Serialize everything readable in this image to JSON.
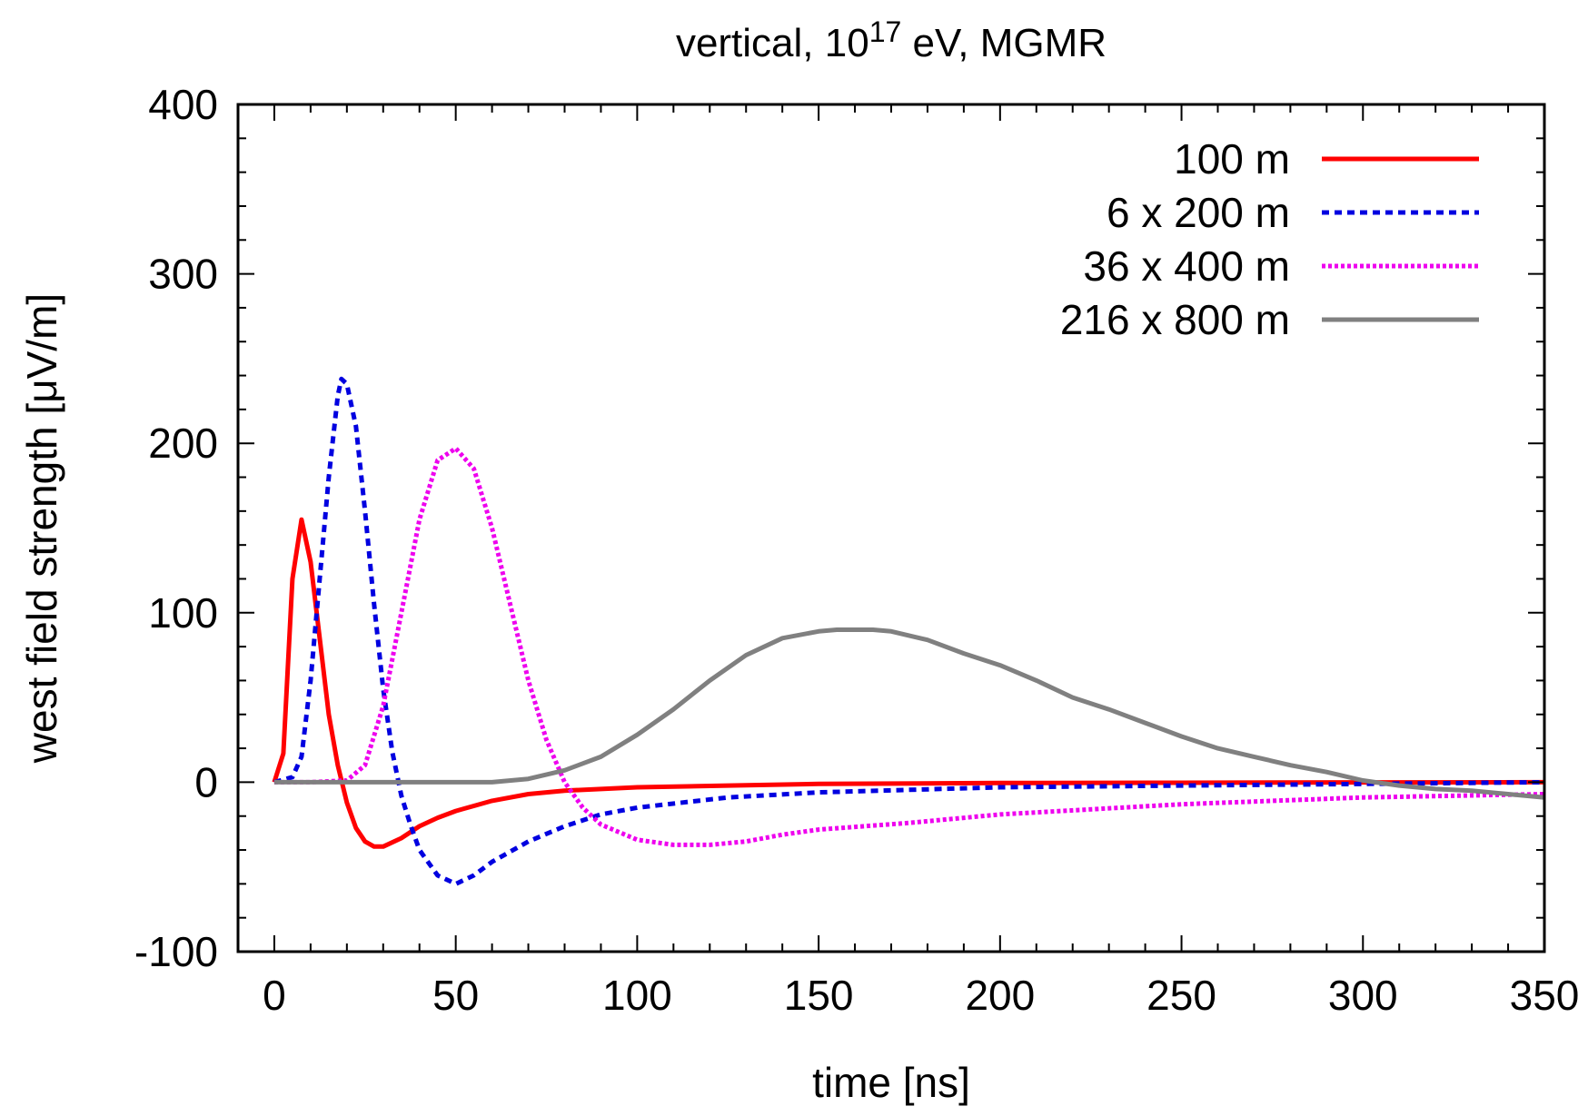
{
  "chart_data": {
    "type": "line",
    "title": {
      "prefix": "vertical, 10",
      "superscript": "17",
      "suffix": " eV, MGMR"
    },
    "xlabel": "time [ns]",
    "ylabel": "west field strength [μV/m]",
    "xlim": [
      -10,
      350
    ],
    "ylim": [
      -100,
      400
    ],
    "xticks": [
      0,
      50,
      100,
      150,
      200,
      250,
      300,
      350
    ],
    "yticks": [
      -100,
      0,
      100,
      200,
      300,
      400
    ],
    "xtick_labels": [
      "0",
      "50",
      "100",
      "150",
      "200",
      "250",
      "300",
      "350"
    ],
    "ytick_labels": [
      "-100",
      "0",
      "100",
      "200",
      "300",
      "400"
    ],
    "grid": false,
    "legend_position": "top-right",
    "series": [
      {
        "name": "100 m",
        "color": "#ff0000",
        "style": "solid",
        "x": [
          0,
          2.5,
          5,
          7.5,
          10,
          12.5,
          15,
          17.5,
          20,
          22.5,
          25,
          27.5,
          30,
          35,
          40,
          45,
          50,
          60,
          70,
          80,
          100,
          125,
          150,
          200,
          250,
          300,
          350
        ],
        "y": [
          0,
          17,
          120,
          155,
          130,
          85,
          40,
          10,
          -12,
          -27,
          -35,
          -38,
          -38,
          -33,
          -26,
          -21,
          -17,
          -11,
          -7,
          -5,
          -3,
          -2,
          -1,
          -0.5,
          -0.3,
          -0.1,
          0
        ]
      },
      {
        "name": "6 x 200 m",
        "color": "#0000e0",
        "style": "dashed",
        "x": [
          0,
          5,
          7.5,
          10,
          12.5,
          15,
          17.5,
          18.5,
          20,
          22.5,
          25,
          27.5,
          30,
          32.5,
          35,
          37.5,
          40,
          45,
          50,
          55,
          60,
          70,
          80,
          90,
          100,
          125,
          150,
          200,
          250,
          300,
          350
        ],
        "y": [
          0,
          3,
          15,
          60,
          120,
          180,
          228,
          238,
          235,
          210,
          160,
          105,
          55,
          18,
          -8,
          -25,
          -40,
          -55,
          -60,
          -55,
          -47,
          -35,
          -26,
          -19,
          -15,
          -9,
          -6,
          -3,
          -2,
          -1,
          0
        ]
      },
      {
        "name": "36 x 400 m",
        "color": "#ee00ee",
        "style": "dotted",
        "x": [
          0,
          10,
          20,
          25,
          30,
          35,
          40,
          45,
          50,
          55,
          60,
          65,
          70,
          75,
          80,
          85,
          90,
          100,
          110,
          120,
          130,
          140,
          150,
          175,
          200,
          250,
          300,
          350
        ],
        "y": [
          0,
          0,
          1,
          10,
          45,
          100,
          155,
          190,
          197,
          185,
          150,
          105,
          60,
          25,
          0,
          -15,
          -25,
          -34,
          -37,
          -37,
          -35,
          -31,
          -28,
          -24,
          -19,
          -13,
          -9,
          -7
        ]
      },
      {
        "name": "216 x 800 m",
        "color": "#808080",
        "style": "solid",
        "x": [
          0,
          40,
          60,
          70,
          80,
          90,
          100,
          110,
          120,
          130,
          140,
          150,
          155,
          160,
          165,
          170,
          180,
          190,
          200,
          210,
          220,
          230,
          240,
          250,
          260,
          270,
          280,
          290,
          300,
          310,
          320,
          330,
          340,
          350
        ],
        "y": [
          0,
          0,
          0,
          2,
          7,
          15,
          28,
          43,
          60,
          75,
          85,
          89,
          90,
          90,
          90,
          89,
          84,
          76,
          69,
          60,
          50,
          43,
          35,
          27,
          20,
          15,
          10,
          6,
          1,
          -2,
          -4,
          -5,
          -7,
          -9
        ]
      }
    ]
  }
}
